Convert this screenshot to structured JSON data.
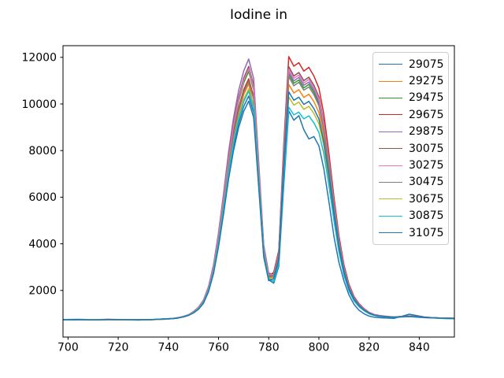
{
  "title": "Iodine in",
  "chart_data": {
    "type": "line",
    "title": "Iodine in",
    "xlabel": "",
    "ylabel": "",
    "grid": false,
    "legend_position": "upper right",
    "xlim": [
      698,
      854
    ],
    "ylim": [
      0,
      12500
    ],
    "xticks": [
      700,
      720,
      740,
      760,
      780,
      800,
      820,
      840
    ],
    "yticks": [
      2000,
      4000,
      6000,
      8000,
      10000,
      12000
    ],
    "x": [
      698,
      704,
      710,
      716,
      722,
      728,
      734,
      740,
      742,
      744,
      746,
      748,
      750,
      752,
      754,
      756,
      758,
      760,
      762,
      764,
      766,
      768,
      770,
      772,
      774,
      776,
      778,
      780,
      782,
      784,
      786,
      788,
      790,
      792,
      794,
      796,
      798,
      800,
      802,
      804,
      806,
      808,
      810,
      812,
      814,
      816,
      818,
      820,
      822,
      824,
      826,
      828,
      830,
      836,
      842,
      848,
      854
    ],
    "series": [
      {
        "name": "29075",
        "color": "#1f77b4",
        "values": [
          750,
          760,
          745,
          750,
          740,
          745,
          755,
          790,
          795,
          820,
          870,
          930,
          1040,
          1200,
          1470,
          1970,
          2780,
          3950,
          5390,
          6920,
          8180,
          9170,
          9890,
          10340,
          9620,
          6560,
          3500,
          2460,
          2310,
          3030,
          6550,
          9700,
          9300,
          9500,
          8900,
          8500,
          8600,
          8200,
          7200,
          5800,
          4300,
          3200,
          2400,
          1800,
          1400,
          1150,
          1000,
          900,
          850,
          830,
          820,
          810,
          800,
          980,
          860,
          800,
          780
        ]
      },
      {
        "name": "29275",
        "color": "#ff7f0e",
        "values": [
          740,
          745,
          735,
          760,
          750,
          730,
          745,
          775,
          800,
          830,
          870,
          940,
          1050,
          1230,
          1510,
          2030,
          2890,
          4120,
          5640,
          7260,
          8590,
          9630,
          10390,
          10870,
          9860,
          6880,
          3650,
          2560,
          2560,
          3400,
          7490,
          10840,
          10470,
          10610,
          10280,
          10420,
          10100,
          9630,
          8610,
          7120,
          5450,
          3960,
          2840,
          2100,
          1630,
          1360,
          1170,
          1030,
          950,
          910,
          880,
          860,
          850,
          890,
          840,
          815,
          800
        ]
      },
      {
        "name": "29475",
        "color": "#2ca02c",
        "values": [
          745,
          755,
          740,
          750,
          745,
          740,
          750,
          780,
          800,
          830,
          880,
          950,
          1070,
          1250,
          1550,
          2100,
          3000,
          4300,
          5900,
          7600,
          9000,
          10100,
          10900,
          11400,
          10600,
          7200,
          3800,
          2650,
          2640,
          3520,
          7780,
          11280,
          10890,
          11030,
          10690,
          10840,
          10500,
          10010,
          8950,
          7390,
          5650,
          4100,
          2930,
          2160,
          1670,
          1380,
          1190,
          1040,
          950,
          920,
          890,
          870,
          860,
          900,
          840,
          820,
          800
        ]
      },
      {
        "name": "29675",
        "color": "#d62728",
        "values": [
          735,
          745,
          750,
          745,
          740,
          735,
          745,
          775,
          800,
          830,
          880,
          940,
          1060,
          1240,
          1530,
          2060,
          2930,
          4190,
          5750,
          7390,
          8750,
          9820,
          10600,
          11080,
          10300,
          7010,
          3710,
          2590,
          2780,
          3710,
          8290,
          12030,
          11620,
          11770,
          11410,
          11570,
          11200,
          10680,
          9540,
          7870,
          6000,
          4340,
          3090,
          2260,
          1740,
          1430,
          1220,
          1060,
          970,
          930,
          900,
          880,
          860,
          910,
          850,
          820,
          800
        ]
      },
      {
        "name": "29875",
        "color": "#9467bd",
        "values": [
          750,
          745,
          735,
          755,
          750,
          740,
          755,
          785,
          800,
          830,
          890,
          960,
          1090,
          1280,
          1590,
          2170,
          3110,
          4480,
          6160,
          7940,
          9410,
          10570,
          11410,
          11930,
          11090,
          7520,
          3950,
          2750,
          2660,
          3540,
          7860,
          11380,
          10990,
          11140,
          10800,
          10940,
          10600,
          10110,
          9030,
          7460,
          5700,
          4130,
          2960,
          2170,
          1680,
          1390,
          1190,
          1040,
          960,
          920,
          890,
          870,
          860,
          900,
          840,
          820,
          800
        ]
      },
      {
        "name": "30075",
        "color": "#8c564b",
        "values": [
          745,
          750,
          745,
          760,
          740,
          730,
          750,
          780,
          800,
          830,
          880,
          950,
          1080,
          1260,
          1570,
          2130,
          3050,
          4370,
          6000,
          7740,
          9170,
          10290,
          11100,
          11610,
          10800,
          7330,
          3860,
          2690,
          2700,
          3600,
          8000,
          11600,
          11200,
          11350,
          11000,
          11150,
          10800,
          10300,
          9200,
          7600,
          5800,
          4200,
          3000,
          2200,
          1700,
          1400,
          1200,
          1050,
          960,
          920,
          890,
          870,
          860,
          900,
          840,
          820,
          800
        ]
      },
      {
        "name": "30275",
        "color": "#e377c2",
        "values": [
          740,
          755,
          740,
          745,
          750,
          740,
          745,
          775,
          800,
          830,
          880,
          950,
          1070,
          1260,
          1560,
          2110,
          3020,
          4340,
          5950,
          7620,
          9080,
          10190,
          11000,
          11510,
          10700,
          7260,
          3830,
          2670,
          2680,
          3570,
          7930,
          11490,
          11100,
          11240,
          10900,
          11050,
          10700,
          10200,
          9120,
          7530,
          5750,
          4170,
          2980,
          2190,
          1690,
          1390,
          1200,
          1050,
          960,
          920,
          890,
          870,
          860,
          900,
          840,
          820,
          800
        ]
      },
      {
        "name": "30475",
        "color": "#7f7f7f",
        "values": [
          745,
          740,
          735,
          750,
          745,
          735,
          755,
          780,
          800,
          830,
          880,
          940,
          1060,
          1230,
          1520,
          2050,
          2910,
          4160,
          5690,
          7330,
          8670,
          9730,
          10490,
          10970,
          10210,
          6940,
          3680,
          2570,
          2620,
          3490,
          7710,
          11170,
          10780,
          10930,
          10590,
          10730,
          10400,
          9920,
          8860,
          7330,
          5600,
          4060,
          2910,
          2140,
          1660,
          1370,
          1180,
          1040,
          950,
          910,
          880,
          870,
          860,
          890,
          840,
          820,
          800
        ]
      },
      {
        "name": "30675",
        "color": "#bcbd22",
        "values": [
          750,
          750,
          745,
          755,
          740,
          730,
          745,
          775,
          800,
          820,
          870,
          940,
          1050,
          1220,
          1490,
          2010,
          2840,
          4050,
          5540,
          7120,
          8420,
          9450,
          10190,
          10650,
          9910,
          6750,
          3590,
          2520,
          2470,
          3260,
          7130,
          10300,
          9950,
          10080,
          9770,
          9900,
          9590,
          9150,
          8190,
          6780,
          5190,
          3790,
          2730,
          2030,
          1590,
          1320,
          1150,
          1010,
          940,
          900,
          870,
          860,
          850,
          880,
          830,
          810,
          790
        ]
      },
      {
        "name": "30875",
        "color": "#17becf",
        "values": [
          735,
          745,
          740,
          750,
          750,
          735,
          750,
          780,
          800,
          820,
          870,
          930,
          1040,
          1210,
          1490,
          1990,
          2820,
          4020,
          5490,
          7050,
          8340,
          9350,
          10090,
          10550,
          9810,
          6680,
          3560,
          2500,
          2390,
          3140,
          6840,
          9860,
          9530,
          9650,
          9360,
          9490,
          9190,
          8770,
          7850,
          6500,
          4990,
          3650,
          2640,
          1970,
          1550,
          1300,
          1130,
          1000,
          930,
          890,
          870,
          850,
          840,
          880,
          830,
          810,
          790
        ]
      },
      {
        "name": "31075",
        "color": "#1f77b4",
        "values": [
          745,
          755,
          735,
          750,
          745,
          740,
          750,
          785,
          790,
          820,
          860,
          930,
          1030,
          1190,
          1450,
          1940,
          2730,
          3870,
          5280,
          6780,
          8010,
          8980,
          9680,
          10120,
          9420,
          6430,
          3430,
          2420,
          2510,
          3320,
          7280,
          10520,
          10160,
          10290,
          9980,
          10110,
          9800,
          9350,
          8360,
          6920,
          5300,
          3860,
          2780,
          2060,
          1610,
          1340,
          1160,
          1020,
          940,
          900,
          880,
          860,
          850,
          890,
          840,
          810,
          800
        ]
      }
    ]
  }
}
